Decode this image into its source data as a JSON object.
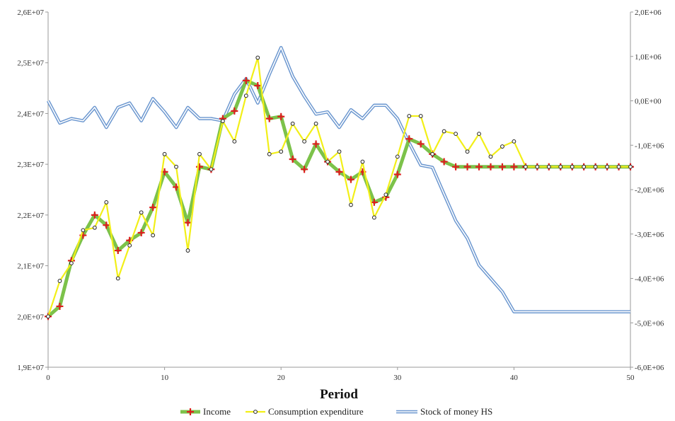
{
  "chart_data": {
    "type": "line",
    "xlabel": "Period",
    "x_ticks": [
      "0",
      "10",
      "20",
      "30",
      "40",
      "50"
    ],
    "xlim": [
      0,
      50
    ],
    "left_axis": {
      "ylim": [
        19000000,
        26000000
      ],
      "tick_values": [
        19000000,
        20000000,
        21000000,
        22000000,
        23000000,
        24000000,
        25000000,
        26000000
      ],
      "tick_labels": [
        "1,9E+07",
        "2,0E+07",
        "2,1E+07",
        "2,2E+07",
        "2,3E+07",
        "2,4E+07",
        "2,5E+07",
        "2,6E+07"
      ]
    },
    "right_axis": {
      "ylim": [
        -6000000,
        2000000
      ],
      "tick_values": [
        -6000000,
        -5000000,
        -4000000,
        -3000000,
        -2000000,
        -1000000,
        0,
        1000000,
        2000000
      ],
      "tick_labels": [
        "-6,0E+06",
        "-5,0E+06",
        "-4,0E+06",
        "-3,0E+06",
        "-2,0E+06",
        "-1,0E+06",
        "0,0E+00",
        "1,0E+06",
        "2,0E+06"
      ]
    },
    "x": [
      0,
      1,
      2,
      3,
      4,
      5,
      6,
      7,
      8,
      9,
      10,
      11,
      12,
      13,
      14,
      15,
      16,
      17,
      18,
      19,
      20,
      21,
      22,
      23,
      24,
      25,
      26,
      27,
      28,
      29,
      30,
      31,
      32,
      33,
      34,
      35,
      36,
      37,
      38,
      39,
      40,
      41,
      42,
      43,
      44,
      45,
      46,
      47,
      48,
      49,
      50
    ],
    "series": [
      {
        "name": "Income",
        "axis": "left",
        "color": "#7cc24a",
        "marker_color": "#dd1f1f",
        "values": [
          20000000,
          20200000,
          21100000,
          21600000,
          22000000,
          21800000,
          21300000,
          21500000,
          21650000,
          22150000,
          22850000,
          22550000,
          21850000,
          22950000,
          22900000,
          23900000,
          24050000,
          24650000,
          24550000,
          23900000,
          23940000,
          23100000,
          22900000,
          23400000,
          23050000,
          22850000,
          22700000,
          22850000,
          22250000,
          22350000,
          22800000,
          23500000,
          23400000,
          23200000,
          23050000,
          22950000,
          22950000,
          22950000,
          22950000,
          22950000,
          22950000,
          22950000,
          22950000,
          22950000,
          22950000,
          22950000,
          22950000,
          22950000,
          22950000,
          22950000,
          22950000
        ]
      },
      {
        "name": "Consumption expenditure",
        "axis": "left",
        "color": "#f2ef18",
        "marker_color": "#ffffff",
        "values": [
          20000000,
          20700000,
          21050000,
          21700000,
          21750000,
          22250000,
          20750000,
          21400000,
          22050000,
          21600000,
          23200000,
          22950000,
          21300000,
          23200000,
          22900000,
          23850000,
          23450000,
          24350000,
          25100000,
          23200000,
          23250000,
          23800000,
          23450000,
          23800000,
          23050000,
          23250000,
          22200000,
          23050000,
          21950000,
          22400000,
          23150000,
          23950000,
          23950000,
          23200000,
          23650000,
          23600000,
          23250000,
          23600000,
          23150000,
          23350000,
          23450000,
          22950000,
          22950000,
          22950000,
          22950000,
          22950000,
          22950000,
          22950000,
          22950000,
          22950000,
          22950000
        ]
      },
      {
        "name": "Stock of money HS",
        "axis": "right",
        "color": "#6a96cf",
        "values": [
          0,
          -500000,
          -400000,
          -450000,
          -150000,
          -600000,
          -150000,
          -50000,
          -450000,
          50000,
          -250000,
          -600000,
          -150000,
          -400000,
          -400000,
          -450000,
          150000,
          500000,
          -50000,
          600000,
          1200000,
          550000,
          100000,
          -300000,
          -250000,
          -600000,
          -200000,
          -400000,
          -100000,
          -100000,
          -400000,
          -950000,
          -1450000,
          -1500000,
          -2100000,
          -2700000,
          -3100000,
          -3700000,
          -4000000,
          -4300000,
          -4750000,
          -4750000,
          -4750000,
          -4750000,
          -4750000,
          -4750000,
          -4750000,
          -4750000,
          -4750000,
          -4750000,
          -4750000
        ]
      }
    ],
    "legend": {
      "placement": "bottom",
      "entries": [
        "Income",
        "Consumption expenditure",
        "Stock of money HS"
      ]
    },
    "grid": false
  }
}
